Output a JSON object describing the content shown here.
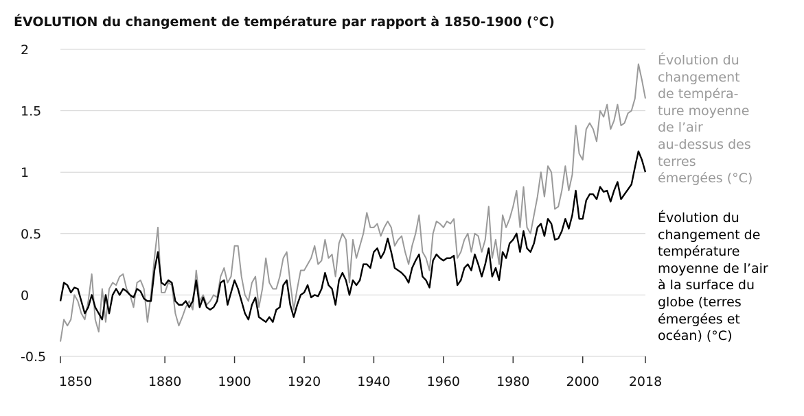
{
  "chart_data": {
    "type": "line",
    "title": "ÉVOLUTION du changement de température par rapport à 1850-1900 (°C)",
    "x": [
      1850,
      1851,
      1852,
      1853,
      1854,
      1855,
      1856,
      1857,
      1858,
      1859,
      1860,
      1861,
      1862,
      1863,
      1864,
      1865,
      1866,
      1867,
      1868,
      1869,
      1870,
      1871,
      1872,
      1873,
      1874,
      1875,
      1876,
      1877,
      1878,
      1879,
      1880,
      1881,
      1882,
      1883,
      1884,
      1885,
      1886,
      1887,
      1888,
      1889,
      1890,
      1891,
      1892,
      1893,
      1894,
      1895,
      1896,
      1897,
      1898,
      1899,
      1900,
      1901,
      1902,
      1903,
      1904,
      1905,
      1906,
      1907,
      1908,
      1909,
      1910,
      1911,
      1912,
      1913,
      1914,
      1915,
      1916,
      1917,
      1918,
      1919,
      1920,
      1921,
      1922,
      1923,
      1924,
      1925,
      1926,
      1927,
      1928,
      1929,
      1930,
      1931,
      1932,
      1933,
      1934,
      1935,
      1936,
      1937,
      1938,
      1939,
      1940,
      1941,
      1942,
      1943,
      1944,
      1945,
      1946,
      1947,
      1948,
      1949,
      1950,
      1951,
      1952,
      1953,
      1954,
      1955,
      1956,
      1957,
      1958,
      1959,
      1960,
      1961,
      1962,
      1963,
      1964,
      1965,
      1966,
      1967,
      1968,
      1969,
      1970,
      1971,
      1972,
      1973,
      1974,
      1975,
      1976,
      1977,
      1978,
      1979,
      1980,
      1981,
      1982,
      1983,
      1984,
      1985,
      1986,
      1987,
      1988,
      1989,
      1990,
      1991,
      1992,
      1993,
      1994,
      1995,
      1996,
      1997,
      1998,
      1999,
      2000,
      2001,
      2002,
      2003,
      2004,
      2005,
      2006,
      2007,
      2008,
      2009,
      2010,
      2011,
      2012,
      2013,
      2014,
      2015,
      2016,
      2017,
      2018
    ],
    "series": [
      {
        "name": "Évolution du\nchangement\nde tempéra-\nture moyenne\nde l’air\nau-dessus des\nterres\némergées (°C)",
        "color": "#9a9a9a",
        "values": [
          -0.38,
          -0.2,
          -0.25,
          -0.2,
          0.0,
          -0.05,
          -0.15,
          -0.2,
          -0.05,
          0.17,
          -0.2,
          -0.3,
          0.05,
          -0.22,
          0.05,
          0.1,
          0.08,
          0.15,
          0.17,
          0.05,
          0.0,
          -0.1,
          0.1,
          0.12,
          0.05,
          -0.22,
          0.0,
          0.3,
          0.55,
          0.02,
          0.02,
          0.1,
          0.08,
          -0.15,
          -0.25,
          -0.18,
          -0.1,
          -0.05,
          -0.12,
          0.2,
          -0.05,
          0.0,
          -0.08,
          -0.05,
          0.0,
          -0.02,
          0.15,
          0.22,
          0.1,
          0.15,
          0.4,
          0.4,
          0.15,
          0.0,
          -0.05,
          0.1,
          0.15,
          -0.1,
          0.05,
          0.3,
          0.1,
          0.05,
          0.05,
          0.15,
          0.3,
          0.35,
          0.1,
          -0.12,
          0.05,
          0.2,
          0.2,
          0.25,
          0.3,
          0.4,
          0.25,
          0.28,
          0.45,
          0.3,
          0.33,
          0.15,
          0.42,
          0.5,
          0.45,
          0.1,
          0.45,
          0.3,
          0.4,
          0.5,
          0.67,
          0.55,
          0.55,
          0.58,
          0.48,
          0.55,
          0.6,
          0.55,
          0.4,
          0.45,
          0.48,
          0.35,
          0.25,
          0.4,
          0.5,
          0.65,
          0.35,
          0.3,
          0.2,
          0.5,
          0.6,
          0.58,
          0.55,
          0.6,
          0.58,
          0.62,
          0.3,
          0.35,
          0.45,
          0.5,
          0.35,
          0.5,
          0.48,
          0.35,
          0.45,
          0.72,
          0.3,
          0.45,
          0.25,
          0.65,
          0.55,
          0.62,
          0.72,
          0.85,
          0.55,
          0.88,
          0.55,
          0.5,
          0.65,
          0.8,
          1.0,
          0.8,
          1.05,
          1.0,
          0.7,
          0.72,
          0.85,
          1.05,
          0.85,
          0.98,
          1.38,
          1.15,
          1.1,
          1.35,
          1.4,
          1.35,
          1.25,
          1.5,
          1.45,
          1.55,
          1.35,
          1.42,
          1.55,
          1.38,
          1.4,
          1.48,
          1.5,
          1.6,
          1.88,
          1.75,
          1.6
        ]
      },
      {
        "name": "Évolution du\nchangement de\ntempérature\nmoyenne de l’air\nà la surface du\nglobe (terres\némergées et\nocéan) (°C)",
        "color": "#000000",
        "values": [
          -0.05,
          0.1,
          0.08,
          0.02,
          0.06,
          0.05,
          -0.05,
          -0.15,
          -0.1,
          0.0,
          -0.1,
          -0.15,
          -0.2,
          0.0,
          -0.15,
          0.0,
          0.05,
          0.0,
          0.05,
          0.03,
          0.0,
          -0.02,
          0.05,
          0.03,
          -0.03,
          -0.05,
          -0.05,
          0.2,
          0.35,
          0.1,
          0.08,
          0.12,
          0.1,
          -0.05,
          -0.08,
          -0.08,
          -0.05,
          -0.1,
          -0.05,
          0.12,
          -0.1,
          -0.02,
          -0.1,
          -0.12,
          -0.1,
          -0.05,
          0.1,
          0.12,
          -0.08,
          0.02,
          0.12,
          0.05,
          -0.05,
          -0.15,
          -0.2,
          -0.08,
          -0.02,
          -0.18,
          -0.2,
          -0.22,
          -0.18,
          -0.22,
          -0.12,
          -0.1,
          0.08,
          0.12,
          -0.08,
          -0.18,
          -0.08,
          0.0,
          0.02,
          0.08,
          -0.02,
          0.0,
          -0.01,
          0.05,
          0.18,
          0.08,
          0.05,
          -0.08,
          0.12,
          0.18,
          0.12,
          0.0,
          0.12,
          0.08,
          0.12,
          0.25,
          0.25,
          0.22,
          0.35,
          0.38,
          0.3,
          0.35,
          0.46,
          0.35,
          0.22,
          0.2,
          0.18,
          0.15,
          0.1,
          0.22,
          0.28,
          0.33,
          0.15,
          0.12,
          0.06,
          0.28,
          0.33,
          0.3,
          0.28,
          0.3,
          0.3,
          0.32,
          0.08,
          0.12,
          0.22,
          0.25,
          0.2,
          0.33,
          0.25,
          0.15,
          0.25,
          0.38,
          0.15,
          0.22,
          0.12,
          0.35,
          0.3,
          0.42,
          0.45,
          0.5,
          0.35,
          0.52,
          0.38,
          0.35,
          0.42,
          0.55,
          0.58,
          0.48,
          0.62,
          0.58,
          0.45,
          0.46,
          0.52,
          0.62,
          0.54,
          0.65,
          0.85,
          0.62,
          0.62,
          0.77,
          0.82,
          0.82,
          0.78,
          0.88,
          0.84,
          0.85,
          0.76,
          0.85,
          0.92,
          0.78,
          0.82,
          0.86,
          0.9,
          1.04,
          1.17,
          1.1,
          1.0
        ]
      }
    ],
    "xlim": [
      1850,
      2018
    ],
    "xticks": [
      1850,
      1880,
      1900,
      1920,
      1940,
      1960,
      1980,
      2000,
      2018
    ],
    "ylim": [
      -0.5,
      2
    ],
    "yticks": [
      2,
      1.5,
      1,
      0.5,
      0,
      -0.5
    ],
    "grid": true
  }
}
